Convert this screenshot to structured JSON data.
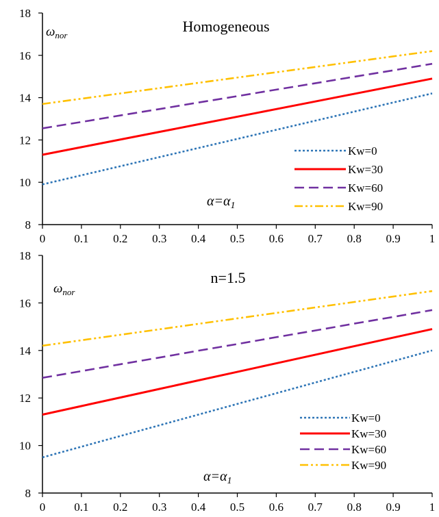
{
  "colors": {
    "Kw=0": "#2e75b6",
    "Kw=30": "#ff0000",
    "Kw=60": "#7030a0",
    "Kw=90": "#ffc000"
  },
  "chart_data": [
    {
      "type": "line",
      "title": "Homogeneous",
      "ylabel": {
        "symbol": "ω",
        "subscript": "nor"
      },
      "annotation": {
        "lhs": "α",
        "rhs": "α",
        "rhs_subscript": "1",
        "eq": "="
      },
      "xlim": [
        0,
        1
      ],
      "ylim": [
        8,
        18
      ],
      "xticks": [
        "0",
        "0.1",
        "0.2",
        "0.3",
        "0.4",
        "0.5",
        "0.6",
        "0.7",
        "0.8",
        "0.9",
        "1"
      ],
      "yticks": [
        "8",
        "10",
        "12",
        "14",
        "16",
        "18"
      ],
      "x": [
        0,
        0.1,
        0.2,
        0.3,
        0.4,
        0.5,
        0.6,
        0.7,
        0.8,
        0.9,
        1
      ],
      "legend_position": "lower-right",
      "series": [
        {
          "name": "Kw=0",
          "style": "dotted",
          "values": [
            9.9,
            10.33,
            10.76,
            11.19,
            11.62,
            12.05,
            12.48,
            12.91,
            13.34,
            13.77,
            14.2
          ]
        },
        {
          "name": "Kw=30",
          "style": "solid",
          "values": [
            11.3,
            11.66,
            12.02,
            12.38,
            12.74,
            13.1,
            13.46,
            13.82,
            14.18,
            14.54,
            14.9
          ]
        },
        {
          "name": "Kw=60",
          "style": "dashed",
          "values": [
            12.55,
            12.85,
            13.16,
            13.46,
            13.77,
            14.07,
            14.38,
            14.68,
            14.99,
            15.29,
            15.6
          ]
        },
        {
          "name": "Kw=90",
          "style": "dashdot",
          "values": [
            13.7,
            13.95,
            14.2,
            14.45,
            14.7,
            14.95,
            15.2,
            15.45,
            15.7,
            15.95,
            16.2
          ]
        }
      ]
    },
    {
      "type": "line",
      "title": "n=1.5",
      "ylabel": {
        "symbol": "ω",
        "subscript": "nor"
      },
      "annotation": {
        "lhs": "α",
        "rhs": "α",
        "rhs_subscript": "1",
        "eq": "="
      },
      "xlim": [
        0,
        1
      ],
      "ylim": [
        8,
        18
      ],
      "xticks": [
        "0",
        "0.1",
        "0.2",
        "0.3",
        "0.4",
        "0.5",
        "0.6",
        "0.7",
        "0.8",
        "0.9",
        "1"
      ],
      "yticks": [
        "8",
        "10",
        "12",
        "14",
        "16",
        "18"
      ],
      "x": [
        0,
        0.1,
        0.2,
        0.3,
        0.4,
        0.5,
        0.6,
        0.7,
        0.8,
        0.9,
        1
      ],
      "legend_position": "lower-right",
      "series": [
        {
          "name": "Kw=0",
          "style": "dotted",
          "values": [
            9.5,
            9.95,
            10.4,
            10.85,
            11.3,
            11.75,
            12.2,
            12.65,
            13.1,
            13.55,
            14.0
          ]
        },
        {
          "name": "Kw=30",
          "style": "solid",
          "values": [
            11.3,
            11.66,
            12.02,
            12.38,
            12.74,
            13.1,
            13.46,
            13.82,
            14.18,
            14.54,
            14.9
          ]
        },
        {
          "name": "Kw=60",
          "style": "dashed",
          "values": [
            12.85,
            13.13,
            13.42,
            13.7,
            13.99,
            14.27,
            14.56,
            14.84,
            15.13,
            15.41,
            15.7
          ]
        },
        {
          "name": "Kw=90",
          "style": "dashdot",
          "values": [
            14.2,
            14.43,
            14.66,
            14.89,
            15.12,
            15.35,
            15.58,
            15.81,
            16.04,
            16.27,
            16.5
          ]
        }
      ]
    }
  ]
}
